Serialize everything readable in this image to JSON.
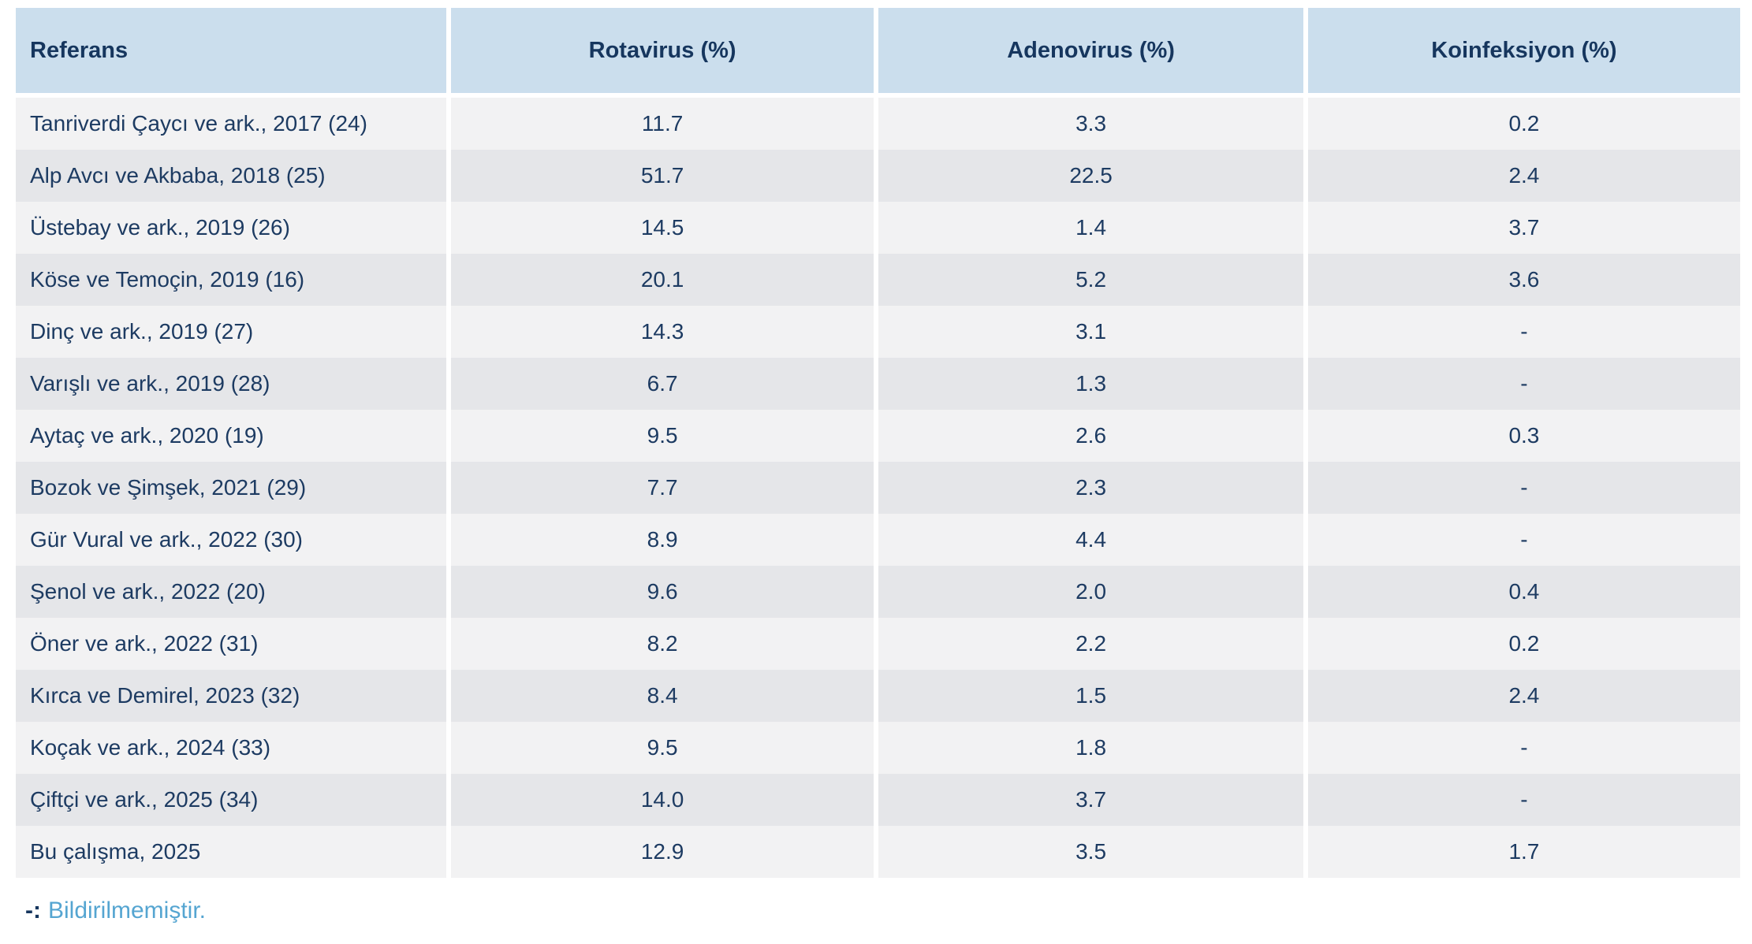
{
  "table": {
    "columns": [
      {
        "label": "Referans"
      },
      {
        "label": "Rotavirus (%)"
      },
      {
        "label": "Adenovirus (%)"
      },
      {
        "label": "Koinfeksiyon (%)"
      }
    ],
    "rows": [
      {
        "referans": "Tanriverdi Çaycı ve ark., 2017 (24)",
        "rotavirus": "11.7",
        "adenovirus": "3.3",
        "koinfeksiyon": "0.2"
      },
      {
        "referans": "Alp Avcı ve Akbaba, 2018 (25)",
        "rotavirus": "51.7",
        "adenovirus": "22.5",
        "koinfeksiyon": "2.4"
      },
      {
        "referans": "Üstebay ve ark., 2019 (26)",
        "rotavirus": "14.5",
        "adenovirus": "1.4",
        "koinfeksiyon": "3.7"
      },
      {
        "referans": "Köse ve Temoçin, 2019 (16)",
        "rotavirus": "20.1",
        "adenovirus": "5.2",
        "koinfeksiyon": "3.6"
      },
      {
        "referans": "Dinç ve ark., 2019 (27)",
        "rotavirus": "14.3",
        "adenovirus": "3.1",
        "koinfeksiyon": "-"
      },
      {
        "referans": "Varışlı ve ark., 2019 (28)",
        "rotavirus": "6.7",
        "adenovirus": "1.3",
        "koinfeksiyon": "-"
      },
      {
        "referans": "Aytaç ve ark., 2020 (19)",
        "rotavirus": "9.5",
        "adenovirus": "2.6",
        "koinfeksiyon": "0.3"
      },
      {
        "referans": "Bozok ve Şimşek, 2021 (29)",
        "rotavirus": "7.7",
        "adenovirus": "2.3",
        "koinfeksiyon": "-"
      },
      {
        "referans": "Gür Vural ve ark., 2022 (30)",
        "rotavirus": "8.9",
        "adenovirus": "4.4",
        "koinfeksiyon": "-"
      },
      {
        "referans": "Şenol ve ark., 2022 (20)",
        "rotavirus": "9.6",
        "adenovirus": "2.0",
        "koinfeksiyon": "0.4"
      },
      {
        "referans": "Öner ve ark., 2022 (31)",
        "rotavirus": "8.2",
        "adenovirus": "2.2",
        "koinfeksiyon": "0.2"
      },
      {
        "referans": "Kırca ve Demirel, 2023 (32)",
        "rotavirus": "8.4",
        "adenovirus": "1.5",
        "koinfeksiyon": "2.4"
      },
      {
        "referans": "Koçak ve ark., 2024 (33)",
        "rotavirus": "9.5",
        "adenovirus": "1.8",
        "koinfeksiyon": "-"
      },
      {
        "referans": "Çiftçi ve ark., 2025 (34)",
        "rotavirus": "14.0",
        "adenovirus": "3.7",
        "koinfeksiyon": "-"
      },
      {
        "referans": "Bu çalışma, 2025",
        "rotavirus": "12.9",
        "adenovirus": "3.5",
        "koinfeksiyon": "1.7"
      }
    ]
  },
  "footnote": {
    "prefix": "-:",
    "text": "Bildirilmemiştir."
  },
  "colors": {
    "header_bg": "#cbdeed",
    "header_text": "#16365e",
    "row_odd": "#f2f2f3",
    "row_even": "#e5e6e9",
    "cell_text": "#1d3b62",
    "footnote_accent": "#55a5d1",
    "separator": "#ffffff"
  }
}
